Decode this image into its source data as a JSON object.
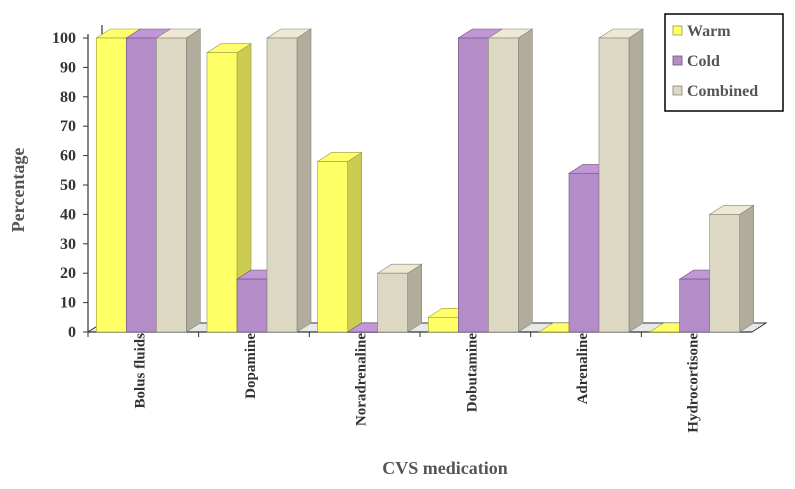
{
  "chart_data": {
    "type": "bar",
    "title": "",
    "xlabel": "CVS medication",
    "ylabel": "Percentage",
    "ylim": [
      0,
      100
    ],
    "yticks": [
      "0",
      "10",
      "20",
      "30",
      "40",
      "50",
      "60",
      "70",
      "80",
      "90",
      "100"
    ],
    "categories": [
      "Bolus fluids",
      "Dopamine",
      "Noradrenaline",
      "Dobutamine",
      "Adrenaline",
      "Hydrocortisone"
    ],
    "series": [
      {
        "name": "Warm",
        "values": [
          100,
          95,
          58,
          5,
          0,
          0
        ],
        "color": "#ffff66"
      },
      {
        "name": "Cold",
        "values": [
          100,
          18,
          0,
          100,
          54,
          18
        ],
        "color": "#b48cc8"
      },
      {
        "name": "Combined",
        "values": [
          100,
          100,
          20,
          100,
          100,
          40
        ],
        "color": "#ddd8c4"
      }
    ],
    "grid": false,
    "legend_position": "top-right",
    "style": "3d-clustered-bar"
  }
}
